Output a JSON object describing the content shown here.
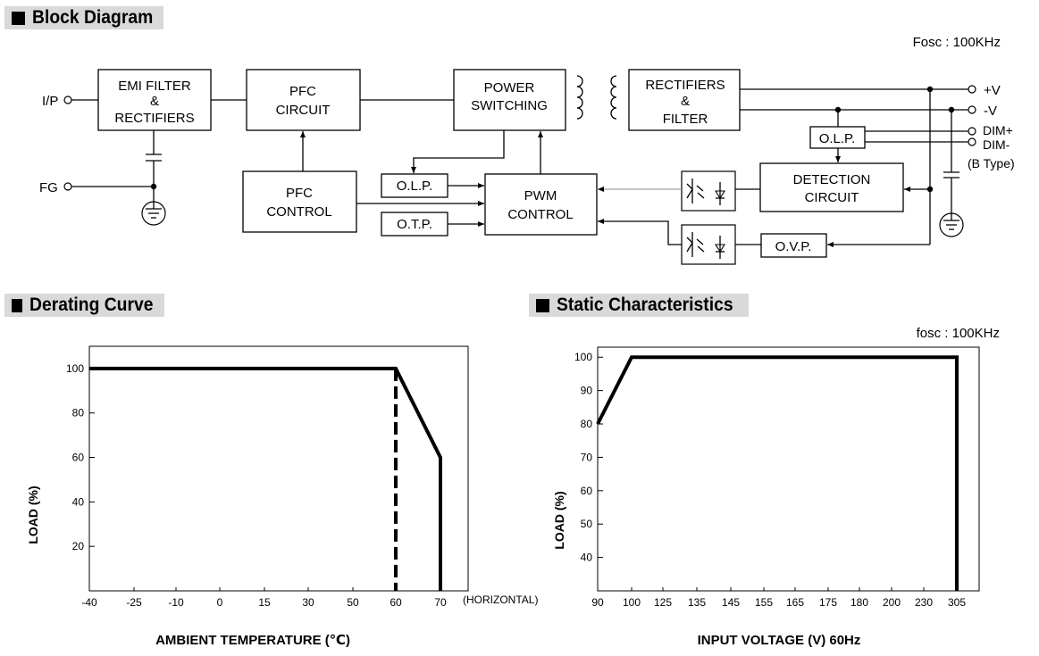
{
  "sections": {
    "block_diagram": "Block Diagram",
    "derating_curve": "Derating Curve",
    "static_characteristics": "Static Characteristics"
  },
  "block_diagram": {
    "fosc": "Fosc : 100KHz",
    "ports": {
      "ip": "I/P",
      "fg": "FG",
      "plus_v": "+V",
      "minus_v": "-V",
      "dim_plus": "DIM+",
      "dim_minus": "DIM-",
      "b_type": "(B Type)"
    },
    "blocks": {
      "emi_1": "EMI FILTER",
      "emi_2": "&",
      "emi_3": "RECTIFIERS",
      "pfc_circuit_1": "PFC",
      "pfc_circuit_2": "CIRCUIT",
      "pfc_control_1": "PFC",
      "pfc_control_2": "CONTROL",
      "power_switching_1": "POWER",
      "power_switching_2": "SWITCHING",
      "rect_filter_1": "RECTIFIERS",
      "rect_filter_2": "&",
      "rect_filter_3": "FILTER",
      "olp_primary": "O.L.P.",
      "otp": "O.T.P.",
      "pwm_1": "PWM",
      "pwm_2": "CONTROL",
      "olp_secondary": "O.L.P.",
      "detection_1": "DETECTION",
      "detection_2": "CIRCUIT",
      "ovp": "O.V.P."
    }
  },
  "chart_data": [
    {
      "type": "line",
      "title": "Derating Curve",
      "xlabel": "AMBIENT TEMPERATURE (℃)",
      "ylabel": "LOAD (%)",
      "x_ticks": [
        "-40",
        "-25",
        "-10",
        "0",
        "15",
        "30",
        "50",
        "60",
        "70"
      ],
      "x_suffix": "(HORIZONTAL)",
      "y_ticks": [
        "20",
        "40",
        "60",
        "80",
        "100"
      ],
      "ylim": [
        0,
        110
      ],
      "series": [
        {
          "points": [
            [
              "-40",
              100
            ],
            [
              "60",
              100
            ],
            [
              "70",
              60
            ],
            [
              "70",
              0
            ]
          ],
          "style": "solid"
        },
        {
          "points": [
            [
              "60",
              100
            ],
            [
              "60",
              0
            ]
          ],
          "style": "dashed"
        }
      ]
    },
    {
      "type": "line",
      "title": "Static Characteristics",
      "annotation": "fosc : 100KHz",
      "xlabel": "INPUT VOLTAGE (V) 60Hz",
      "ylabel": "LOAD (%)",
      "x_ticks": [
        "90",
        "100",
        "125",
        "135",
        "145",
        "155",
        "165",
        "175",
        "180",
        "200",
        "230",
        "305"
      ],
      "y_ticks": [
        "40",
        "50",
        "60",
        "70",
        "80",
        "90",
        "100"
      ],
      "ylim": [
        30,
        103
      ],
      "series": [
        {
          "points": [
            [
              "90",
              80
            ],
            [
              "100",
              100
            ],
            [
              "305",
              100
            ],
            [
              "305",
              30
            ]
          ],
          "style": "solid"
        }
      ]
    }
  ]
}
